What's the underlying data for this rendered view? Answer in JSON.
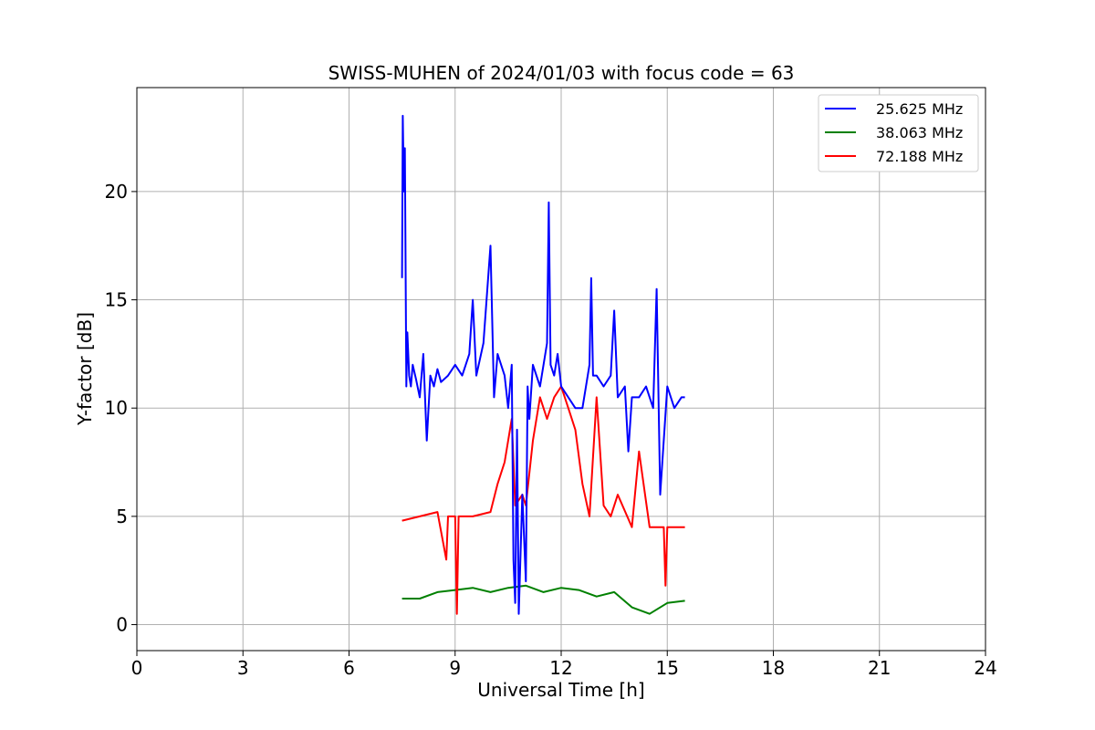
{
  "chart_data": {
    "type": "line",
    "title": "SWISS-MUHEN of 2024/01/03 with focus code = 63",
    "xlabel": "Universal Time [h]",
    "ylabel": "Y-factor [dB]",
    "xlim": [
      0,
      24
    ],
    "ylim": [
      -1.2,
      24.8
    ],
    "xticks": [
      0,
      3,
      6,
      9,
      12,
      15,
      18,
      21,
      24
    ],
    "yticks": [
      0,
      5,
      10,
      15,
      20
    ],
    "grid": true,
    "legend_position": "top-right",
    "series": [
      {
        "name": "25.625 MHz",
        "color": "#0000ff",
        "x": [
          7.5,
          7.52,
          7.55,
          7.58,
          7.62,
          7.65,
          7.7,
          7.75,
          7.8,
          7.9,
          8.0,
          8.1,
          8.2,
          8.3,
          8.4,
          8.5,
          8.6,
          8.8,
          9.0,
          9.2,
          9.4,
          9.5,
          9.6,
          9.8,
          10.0,
          10.1,
          10.2,
          10.4,
          10.5,
          10.6,
          10.65,
          10.7,
          10.75,
          10.8,
          10.9,
          11.0,
          11.05,
          11.1,
          11.2,
          11.4,
          11.6,
          11.65,
          11.7,
          11.8,
          11.9,
          12.0,
          12.2,
          12.4,
          12.6,
          12.8,
          12.85,
          12.9,
          13.0,
          13.2,
          13.4,
          13.5,
          13.6,
          13.8,
          13.9,
          14.0,
          14.2,
          14.4,
          14.6,
          14.7,
          14.8,
          15.0,
          15.2,
          15.4,
          15.5
        ],
        "y": [
          16.0,
          23.5,
          20.0,
          22.0,
          11.0,
          13.5,
          11.5,
          11.0,
          12.0,
          11.3,
          10.5,
          12.5,
          8.5,
          11.5,
          11.0,
          11.8,
          11.2,
          11.5,
          12.0,
          11.5,
          12.5,
          15.0,
          11.5,
          13.0,
          17.5,
          10.5,
          12.5,
          11.5,
          10.0,
          12.0,
          3.0,
          1.0,
          9.0,
          0.5,
          6.0,
          2.0,
          11.0,
          9.5,
          12.0,
          11.0,
          13.0,
          19.5,
          12.0,
          11.5,
          12.5,
          11.0,
          10.5,
          10.0,
          10.0,
          12.0,
          16.0,
          11.5,
          11.5,
          11.0,
          11.5,
          14.5,
          10.5,
          11.0,
          8.0,
          10.5,
          10.5,
          11.0,
          10.0,
          15.5,
          6.0,
          11.0,
          10.0,
          10.5,
          10.5
        ]
      },
      {
        "name": "38.063 MHz",
        "color": "#008000",
        "x": [
          7.5,
          8.0,
          8.5,
          9.0,
          9.5,
          10.0,
          10.5,
          11.0,
          11.5,
          12.0,
          12.5,
          13.0,
          13.5,
          14.0,
          14.5,
          15.0,
          15.5
        ],
        "y": [
          1.2,
          1.2,
          1.5,
          1.6,
          1.7,
          1.5,
          1.7,
          1.8,
          1.5,
          1.7,
          1.6,
          1.3,
          1.5,
          0.8,
          0.5,
          1.0,
          1.1
        ]
      },
      {
        "name": "72.188 MHz",
        "color": "#ff0000",
        "x": [
          7.5,
          8.0,
          8.5,
          8.75,
          8.8,
          9.0,
          9.05,
          9.1,
          9.5,
          10.0,
          10.2,
          10.4,
          10.6,
          10.7,
          10.9,
          11.0,
          11.2,
          11.4,
          11.6,
          11.8,
          12.0,
          12.2,
          12.4,
          12.6,
          12.8,
          13.0,
          13.2,
          13.4,
          13.6,
          14.0,
          14.2,
          14.5,
          14.9,
          14.95,
          15.0,
          15.5
        ],
        "y": [
          4.8,
          5.0,
          5.2,
          3.0,
          5.0,
          5.0,
          0.5,
          5.0,
          5.0,
          5.2,
          6.5,
          7.5,
          9.5,
          5.5,
          6.0,
          5.5,
          8.5,
          10.5,
          9.5,
          10.5,
          11.0,
          10.0,
          9.0,
          6.5,
          5.0,
          10.5,
          5.5,
          5.0,
          6.0,
          4.5,
          8.0,
          4.5,
          4.5,
          1.8,
          4.5,
          4.5
        ]
      }
    ]
  }
}
